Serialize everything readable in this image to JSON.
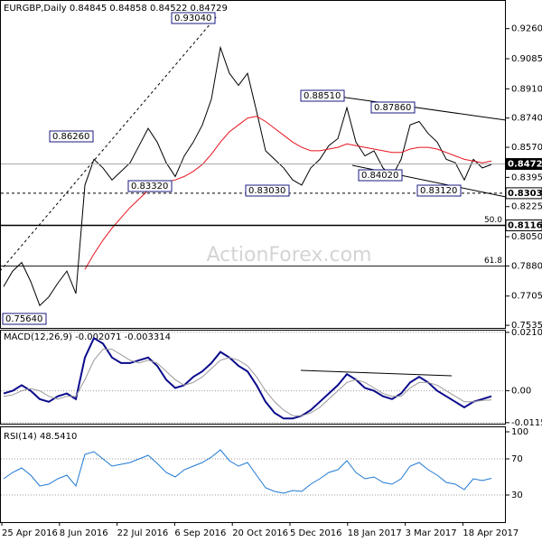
{
  "chart_data": [
    {
      "type": "line",
      "title": "EURGBP,Daily 0.84845 0.84858 0.84522 0.84729",
      "watermark": "ActionForex.com",
      "ylim": [
        0.7525,
        0.9416
      ],
      "yticks": [
        {
          "value": 0.926,
          "label": "0.92600"
        },
        {
          "value": 0.9085,
          "label": "0.90850"
        },
        {
          "value": 0.891,
          "label": "0.89100"
        },
        {
          "value": 0.874,
          "label": "0.87400"
        },
        {
          "value": 0.857,
          "label": "0.85700"
        },
        {
          "value": 0.8395,
          "label": "0.83950"
        },
        {
          "value": 0.8225,
          "label": "0.82250"
        },
        {
          "value": 0.805,
          "label": "0.80500"
        },
        {
          "value": 0.788,
          "label": "0.78800"
        },
        {
          "value": 0.7705,
          "label": "0.77050"
        },
        {
          "value": 0.7535,
          "label": "0.75350"
        }
      ],
      "marked_levels": [
        {
          "value": 0.84729,
          "label": "0.84729"
        },
        {
          "value": 0.8303,
          "label": "0.83030"
        },
        {
          "value": 0.8116,
          "label": "0.81160"
        }
      ],
      "fib_levels": [
        {
          "value": 0.8116,
          "label": "50.0"
        },
        {
          "value": 0.788,
          "label": "61.8"
        }
      ],
      "annotations": [
        "0.93040",
        "0.88510",
        "0.87860",
        "0.86260",
        "0.84020",
        "0.83320",
        "0.83030",
        "0.83120",
        "0.75640"
      ],
      "series": [
        {
          "color": "#000000",
          "values": [
            0.776,
            0.785,
            0.79,
            0.779,
            0.765,
            0.77,
            0.778,
            0.785,
            0.772,
            0.835,
            0.85,
            0.845,
            0.838,
            0.843,
            0.848,
            0.858,
            0.868,
            0.86,
            0.848,
            0.84,
            0.852,
            0.86,
            0.87,
            0.885,
            0.915,
            0.9,
            0.893,
            0.9,
            0.878,
            0.855,
            0.85,
            0.845,
            0.838,
            0.835,
            0.845,
            0.85,
            0.858,
            0.862,
            0.88,
            0.86,
            0.852,
            0.855,
            0.845,
            0.84,
            0.85,
            0.87,
            0.872,
            0.865,
            0.86,
            0.85,
            0.848,
            0.838,
            0.85,
            0.845,
            0.847
          ]
        },
        {
          "color": "#e8141e",
          "values": [
            null,
            null,
            null,
            null,
            null,
            null,
            null,
            null,
            null,
            0.786,
            0.795,
            0.803,
            0.81,
            0.816,
            0.822,
            0.827,
            0.832,
            0.835,
            0.837,
            0.838,
            0.84,
            0.843,
            0.847,
            0.853,
            0.86,
            0.866,
            0.87,
            0.874,
            0.875,
            0.872,
            0.868,
            0.864,
            0.86,
            0.857,
            0.855,
            0.855,
            0.856,
            0.857,
            0.859,
            0.858,
            0.857,
            0.856,
            0.855,
            0.854,
            0.854,
            0.856,
            0.857,
            0.857,
            0.856,
            0.854,
            0.852,
            0.85,
            0.849,
            0.848,
            0.849
          ]
        }
      ]
    },
    {
      "type": "line",
      "title": "MACD(12,26,9) -0.002071 -0.003314",
      "ylim": [
        -0.0122,
        0.0217
      ],
      "yticks": [
        {
          "value": 0.021074,
          "label": "0.021074"
        },
        {
          "value": 0,
          "label": "0.00"
        },
        {
          "value": -0.011507,
          "label": "-0.011507"
        }
      ],
      "series": [
        {
          "color": "#0a0a8c",
          "values": [
            -0.001,
            0.0,
            0.002,
            0.0,
            -0.003,
            -0.004,
            -0.002,
            -0.001,
            -0.003,
            0.012,
            0.019,
            0.017,
            0.012,
            0.01,
            0.01,
            0.011,
            0.012,
            0.009,
            0.004,
            0.001,
            0.002,
            0.005,
            0.007,
            0.01,
            0.014,
            0.012,
            0.009,
            0.007,
            0.002,
            -0.004,
            -0.008,
            -0.01,
            -0.01,
            -0.009,
            -0.007,
            -0.004,
            -0.001,
            0.002,
            0.006,
            0.004,
            0.001,
            0.0,
            -0.002,
            -0.003,
            -0.001,
            0.003,
            0.005,
            0.003,
            0.0,
            -0.002,
            -0.004,
            -0.006,
            -0.004,
            -0.003,
            -0.002
          ]
        },
        {
          "color": "#999999",
          "values": [
            -0.002,
            -0.0015,
            0,
            0.0008,
            0,
            -0.002,
            -0.003,
            -0.002,
            -0.002,
            0.004,
            0.011,
            0.015,
            0.015,
            0.013,
            0.011,
            0.01,
            0.011,
            0.01,
            0.007,
            0.004,
            0.002,
            0.003,
            0.005,
            0.008,
            0.011,
            0.012,
            0.011,
            0.009,
            0.005,
            0.0,
            -0.004,
            -0.007,
            -0.009,
            -0.009,
            -0.008,
            -0.006,
            -0.003,
            0.0,
            0.003,
            0.004,
            0.003,
            0.001,
            -0.001,
            -0.002,
            -0.002,
            0.001,
            0.003,
            0.003,
            0.002,
            0.0,
            -0.002,
            -0.004,
            -0.004,
            -0.0035,
            -0.0033
          ]
        }
      ]
    },
    {
      "type": "line",
      "title": "RSI(14) 48.5410",
      "ylim": [
        0,
        100
      ],
      "yticks": [
        30,
        70,
        100
      ],
      "xticks": [
        "25 Apr 2016",
        "8 Jun 2016",
        "22 Jul 2016",
        "6 Sep 2016",
        "20 Oct 2016",
        "5 Dec 2016",
        "18 Jan 2017",
        "3 Mar 2017",
        "18 Apr 2017"
      ],
      "series": [
        {
          "color": "#1e78d2",
          "values": [
            48,
            55,
            60,
            52,
            40,
            42,
            48,
            52,
            40,
            75,
            78,
            70,
            62,
            64,
            66,
            70,
            74,
            65,
            55,
            50,
            58,
            62,
            66,
            72,
            80,
            68,
            62,
            66,
            52,
            38,
            34,
            32,
            35,
            34,
            42,
            48,
            55,
            58,
            68,
            55,
            48,
            50,
            44,
            42,
            48,
            62,
            66,
            58,
            52,
            44,
            42,
            36,
            48,
            46,
            48.5
          ]
        }
      ]
    }
  ]
}
